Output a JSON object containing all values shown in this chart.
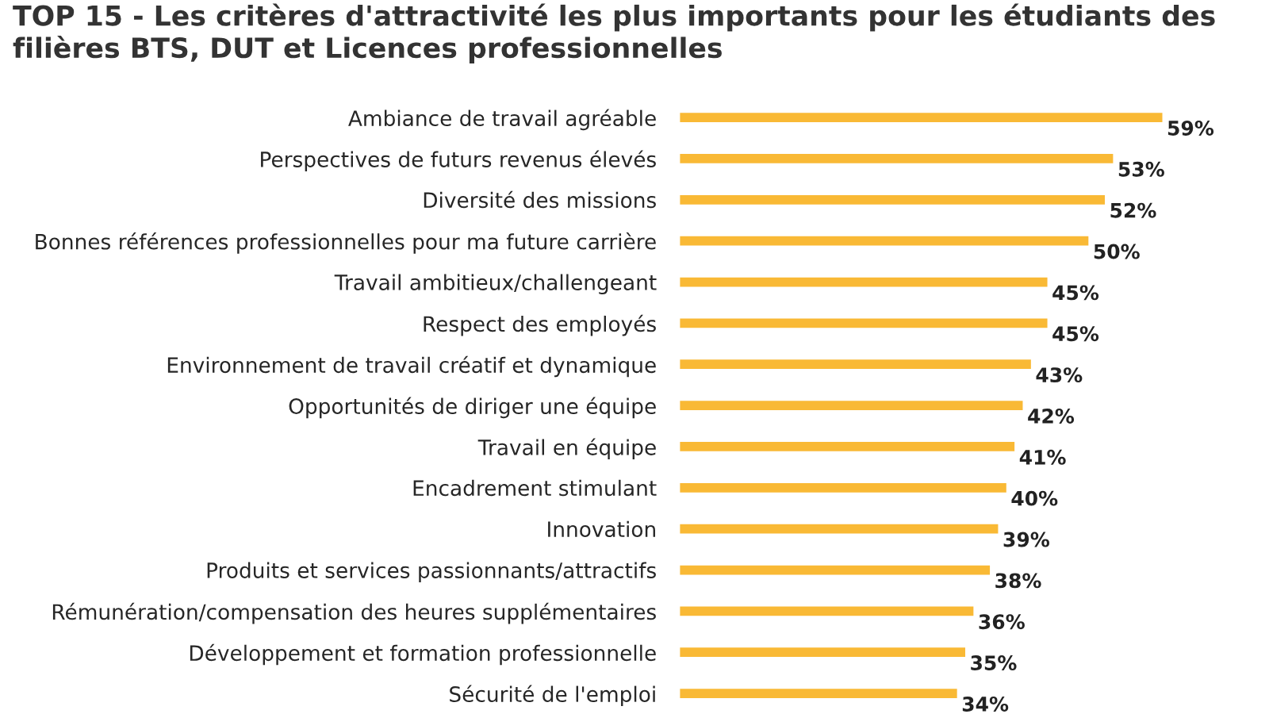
{
  "chart_data": {
    "type": "bar",
    "orientation": "horizontal",
    "title": "TOP 15 - Les critères d'attractivité les plus importants pour les étudiants des filières BTS, DUT et Licences professionnelles",
    "categories": [
      "Ambiance de travail agréable",
      "Perspectives de futurs revenus élevés",
      "Diversité des missions",
      "Bonnes références professionnelles pour ma future carrière",
      "Travail ambitieux/challengeant",
      "Respect des employés",
      "Environnement de travail créatif et dynamique",
      "Opportunités de diriger une équipe",
      "Travail en équipe",
      "Encadrement stimulant",
      "Innovation",
      "Produits et services passionnants/attractifs",
      "Rémunération/compensation des heures supplémentaires",
      "Développement et formation professionnelle",
      "Sécurité de l'emploi"
    ],
    "values": [
      59,
      53,
      52,
      50,
      45,
      45,
      43,
      42,
      41,
      40,
      39,
      38,
      36,
      35,
      34
    ],
    "value_labels": [
      "59%",
      "53%",
      "52%",
      "50%",
      "45%",
      "45%",
      "43%",
      "42%",
      "41%",
      "40%",
      "39%",
      "38%",
      "36%",
      "35%",
      "34%"
    ],
    "color": "#f9b935",
    "grid": false,
    "legend": false,
    "tick_labels": "y"
  }
}
